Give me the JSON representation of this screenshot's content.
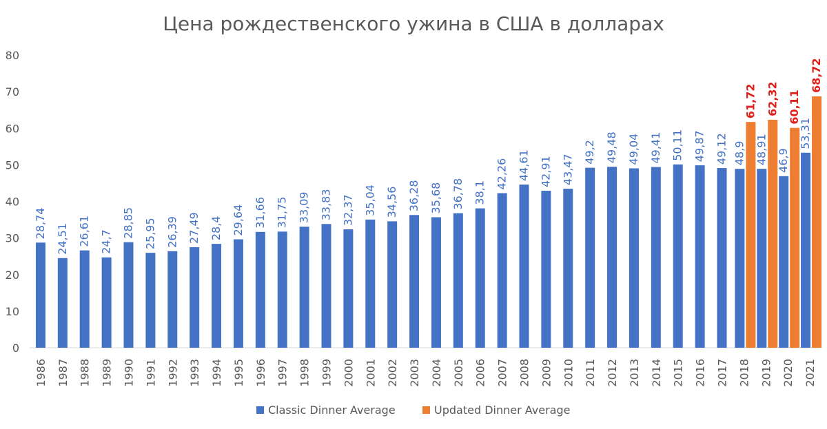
{
  "chart_data": {
    "type": "bar",
    "title": "Цена рождественского ужина в США в долларах",
    "xlabel": "",
    "ylabel": "",
    "ylim": [
      0,
      80
    ],
    "yticks": [
      0,
      10,
      20,
      30,
      40,
      50,
      60,
      70,
      80
    ],
    "grid": false,
    "legend_position": "bottom",
    "categories": [
      "1986",
      "1987",
      "1988",
      "1989",
      "1990",
      "1991",
      "1992",
      "1993",
      "1994",
      "1995",
      "1996",
      "1997",
      "1998",
      "1999",
      "2000",
      "2001",
      "2002",
      "2003",
      "2004",
      "2005",
      "2006",
      "2007",
      "2008",
      "2009",
      "2010",
      "2011",
      "2012",
      "2013",
      "2014",
      "2015",
      "2016",
      "2017",
      "2018",
      "2019",
      "2020",
      "2021"
    ],
    "series": [
      {
        "name": "Classic Dinner Average",
        "color": "#4472C4",
        "label_color": "#4472C4",
        "values": [
          28.74,
          24.51,
          26.61,
          24.7,
          28.85,
          25.95,
          26.39,
          27.49,
          28.4,
          29.64,
          31.66,
          31.75,
          33.09,
          33.83,
          32.37,
          35.04,
          34.56,
          36.28,
          35.68,
          36.78,
          38.1,
          42.26,
          44.61,
          42.91,
          43.47,
          49.2,
          49.48,
          49.04,
          49.41,
          50.11,
          49.87,
          49.12,
          48.9,
          48.91,
          46.9,
          53.31
        ],
        "labels": [
          "28,74",
          "24,51",
          "26,61",
          "24,7",
          "28,85",
          "25,95",
          "26,39",
          "27,49",
          "28,4",
          "29,64",
          "31,66",
          "31,75",
          "33,09",
          "33,83",
          "32,37",
          "35,04",
          "34,56",
          "36,28",
          "35,68",
          "36,78",
          "38,1",
          "42,26",
          "44,61",
          "42,91",
          "43,47",
          "49,2",
          "49,48",
          "49,04",
          "49,41",
          "50,11",
          "49,87",
          "49,12",
          "48,9",
          "48,91",
          "46,9",
          "53,31"
        ]
      },
      {
        "name": "Updated Dinner Average",
        "color": "#ED7D31",
        "label_color": "#E0201B",
        "values": [
          null,
          null,
          null,
          null,
          null,
          null,
          null,
          null,
          null,
          null,
          null,
          null,
          null,
          null,
          null,
          null,
          null,
          null,
          null,
          null,
          null,
          null,
          null,
          null,
          null,
          null,
          null,
          null,
          null,
          null,
          null,
          null,
          61.72,
          62.32,
          60.11,
          68.72
        ],
        "labels": [
          null,
          null,
          null,
          null,
          null,
          null,
          null,
          null,
          null,
          null,
          null,
          null,
          null,
          null,
          null,
          null,
          null,
          null,
          null,
          null,
          null,
          null,
          null,
          null,
          null,
          null,
          null,
          null,
          null,
          null,
          null,
          null,
          "61,72",
          "62,32",
          "60,11",
          "68,72"
        ]
      }
    ]
  }
}
